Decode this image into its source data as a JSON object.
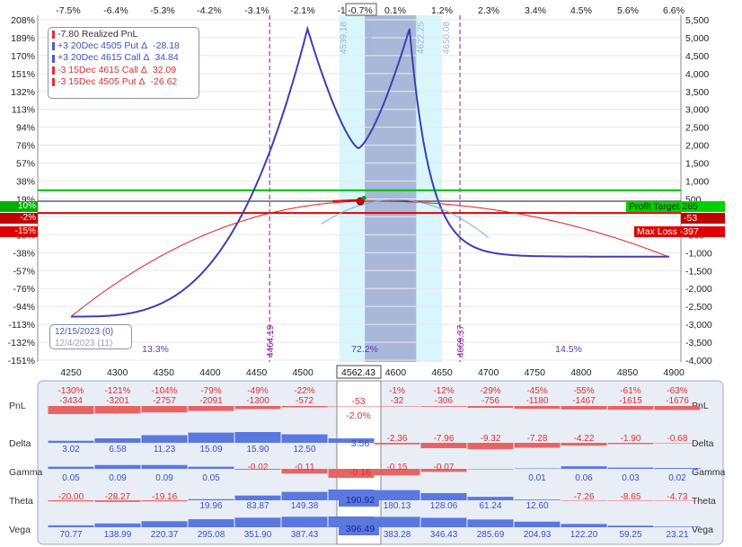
{
  "top_pct_labels": [
    "-7.5%",
    "-6.4%",
    "-5.3%",
    "-4.2%",
    "-3.1%",
    "-2.1%",
    "-1",
    "-0.7%",
    "0.1%",
    "1.2%",
    "2.3%",
    "3.4%",
    "4.5%",
    "5.6%",
    "6.6%"
  ],
  "left_pct_labels": [
    "208%",
    "189%",
    "170%",
    "151%",
    "132%",
    "113%",
    "94%",
    "76%",
    "57%",
    "38%",
    "19%",
    "0%",
    "-19%",
    "-38%",
    "-57%",
    "-76%",
    "-94%",
    "-113%",
    "-132%",
    "-151%"
  ],
  "left_markers": {
    "profit": "10%",
    "current": "-2%",
    "loss": "-15%"
  },
  "right_value_labels": [
    "5,500",
    "5,000",
    "4,500",
    "4,000",
    "3,500",
    "3,000",
    "2,500",
    "2,000",
    "1,500",
    "1,000",
    "500",
    "0",
    "-500",
    "-1,000",
    "-1,500",
    "-2,000",
    "-2,500",
    "-3,000",
    "-3,500",
    "-4,000"
  ],
  "right_markers": {
    "profit": "Profit Target 265",
    "current": "-53",
    "loss": "Max Loss -397"
  },
  "x_tick_labels": [
    "4250",
    "4300",
    "4350",
    "4400",
    "4450",
    "4500",
    "4550",
    "4600",
    "4650",
    "4700",
    "4750",
    "4800",
    "4850",
    "4900"
  ],
  "x_current": "4562.43",
  "strike_lines": [
    "4464.19",
    "4669.37"
  ],
  "band_labels": [
    "4539.18",
    "4566.90",
    "4622.25",
    "4650.08"
  ],
  "zone_pcts": [
    "13.3%",
    "72.2%",
    "14.5%"
  ],
  "legend": [
    {
      "qty": "-7.80 Realized PnL",
      "value": "",
      "color": "#e03030"
    },
    {
      "qty": "+3 20Dec 4505 Put Δ",
      "value": "-28.18",
      "color": "#4a5cd0"
    },
    {
      "qty": "+3 20Dec 4615 Call Δ",
      "value": "34.84",
      "color": "#4a5cd0"
    },
    {
      "qty": "-3 15Dec 4615 Call Δ",
      "value": "32.09",
      "color": "#e03030"
    },
    {
      "qty": "-3 15Dec 4505 Put Δ",
      "value": "-26.62",
      "color": "#e03030"
    }
  ],
  "dates": {
    "primary": "12/15/2023 (0)",
    "secondary": "12/4/2023 (11)"
  },
  "greeks": {
    "rows": [
      "PnL",
      "Delta",
      "Gamma",
      "Theta",
      "Vega"
    ],
    "pnl_pct": [
      "-130%",
      "-121%",
      "-104%",
      "-79%",
      "-49%",
      "-22%",
      "-5%",
      "",
      "-1%",
      "-12%",
      "-29%",
      "-45%",
      "-55%",
      "-61%",
      "-63%"
    ],
    "pnl": [
      -3434,
      -3201,
      -2757,
      -2091,
      -1300,
      -572,
      -125,
      null,
      -32,
      -306,
      -756,
      -1180,
      -1467,
      -1615,
      -1676
    ],
    "delta": [
      3.02,
      6.58,
      11.23,
      15.09,
      15.9,
      12.5,
      6.5,
      null,
      -2.36,
      -7.96,
      -9.32,
      -7.28,
      -4.22,
      -1.9,
      -0.68
    ],
    "gamma": [
      0.05,
      0.09,
      0.09,
      0.05,
      -0.02,
      -0.11,
      -0.21,
      null,
      -0.15,
      -0.07,
      0.0,
      0.01,
      0.06,
      0.03,
      0.02
    ],
    "theta": [
      -20.0,
      -28.27,
      -19.16,
      19.96,
      83.87,
      149.38,
      190.0,
      null,
      180.13,
      128.06,
      61.24,
      12.6,
      -7.26,
      -8.65,
      -4.73
    ],
    "vega": [
      70.77,
      138.99,
      220.37,
      295.08,
      351.9,
      387.43,
      395.0,
      null,
      383.28,
      346.43,
      285.69,
      204.93,
      122.2,
      59.25,
      23.21
    ],
    "current": {
      "pnl": "-53",
      "pnl_pct": "-2.0%",
      "delta": "3.56",
      "gamma": "-0.16",
      "theta": "190.92",
      "vega": "396.49"
    }
  },
  "colors": {
    "blue_curve": "#3f3fb0",
    "red_curve": "#e02020",
    "profit": "#00c000",
    "loss": "#e00000",
    "strike": "#8a1a9a",
    "band_light": "#d8f6fb",
    "band_dark": "#a9b8d8",
    "bar_pos": "#5a78e0",
    "bar_neg": "#e86464"
  }
}
